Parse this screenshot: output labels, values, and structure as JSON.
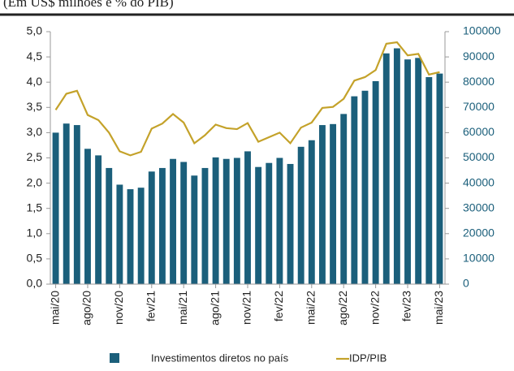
{
  "chart_data": {
    "type": "bar_line",
    "subtitle": "(Em US$ milhões e % do PIB)",
    "categories": [
      "mai/20",
      null,
      null,
      "ago/20",
      null,
      null,
      "nov/20",
      null,
      null,
      "fev/21",
      null,
      null,
      "mai/21",
      null,
      null,
      "ago/21",
      null,
      null,
      "nov/21",
      null,
      null,
      "fev/22",
      null,
      null,
      "mai/22",
      null,
      null,
      "ago/22",
      null,
      null,
      "nov/22",
      null,
      null,
      "fev/23",
      null,
      null,
      "mai/23"
    ],
    "series": [
      {
        "name": "Investimentos diretos no país",
        "color": "#1b5f7b",
        "axis": "y2",
        "kind": "bar",
        "values": [
          60000,
          63600,
          63000,
          53600,
          51000,
          46000,
          39400,
          37600,
          38200,
          44600,
          46000,
          49600,
          48400,
          43000,
          46000,
          50200,
          49600,
          50000,
          52600,
          46400,
          48000,
          50000,
          47600,
          54400,
          57000,
          63000,
          63400,
          67400,
          74400,
          76600,
          80400,
          91400,
          93400,
          89000,
          89600,
          82000,
          83400
        ]
      },
      {
        "name": "IDP/PIB",
        "color": "#c4a22a",
        "axis": "y",
        "kind": "line",
        "values": [
          3.45,
          3.77,
          3.83,
          3.35,
          3.25,
          3.0,
          2.63,
          2.55,
          2.62,
          3.08,
          3.18,
          3.37,
          3.2,
          2.79,
          2.95,
          3.16,
          3.09,
          3.07,
          3.19,
          2.82,
          2.91,
          3.0,
          2.79,
          3.1,
          3.2,
          3.49,
          3.51,
          3.67,
          4.03,
          4.1,
          4.24,
          4.76,
          4.79,
          4.53,
          4.56,
          4.15,
          4.2
        ]
      }
    ],
    "ylim": [
      0,
      5
    ],
    "yticks": [
      {
        "value": 0,
        "label": "0,0"
      },
      {
        "value": 0.5,
        "label": "0,5"
      },
      {
        "value": 1,
        "label": "1,0"
      },
      {
        "value": 1.5,
        "label": "1,5"
      },
      {
        "value": 2,
        "label": "2,0"
      },
      {
        "value": 2.5,
        "label": "2,5"
      },
      {
        "value": 3,
        "label": "3,0"
      },
      {
        "value": 3.5,
        "label": "3,5"
      },
      {
        "value": 4,
        "label": "4,0"
      },
      {
        "value": 4.5,
        "label": "4,5"
      },
      {
        "value": 5,
        "label": "5,0"
      }
    ],
    "y2lim": [
      0,
      100000
    ],
    "y2ticks": [
      0,
      10000,
      20000,
      30000,
      40000,
      50000,
      60000,
      70000,
      80000,
      90000,
      100000
    ]
  }
}
